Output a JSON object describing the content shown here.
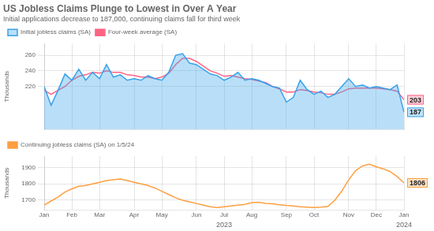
{
  "chart_data": [
    {
      "type": "line",
      "title": "US Jobless Claims Plunge to Lowest in Over A Year",
      "subtitle": "Initial applications decrease to 187,000, continuing claims fall for third week",
      "categories": [
        "Jan",
        null,
        null,
        null,
        "Feb",
        null,
        null,
        null,
        "Mar",
        null,
        null,
        null,
        null,
        "Apr",
        null,
        null,
        null,
        "May",
        null,
        null,
        null,
        null,
        "Jun",
        null,
        null,
        null,
        "Jul",
        null,
        null,
        null,
        "Aug",
        null,
        null,
        null,
        null,
        "Sep",
        null,
        null,
        null,
        "Oct",
        null,
        null,
        null,
        null,
        "Nov",
        null,
        null,
        null,
        "Dec",
        null,
        null,
        null,
        "Jan"
      ],
      "series": [
        {
          "name": "Initial jobless claims (SA)",
          "type": "area",
          "values": [
            220,
            196,
            215,
            236,
            228,
            242,
            228,
            238,
            230,
            248,
            232,
            235,
            228,
            230,
            228,
            234,
            230,
            228,
            238,
            260,
            262,
            250,
            248,
            242,
            236,
            234,
            228,
            232,
            238,
            228,
            230,
            228,
            224,
            220,
            218,
            200,
            206,
            228,
            216,
            210,
            214,
            206,
            210,
            220,
            230,
            220,
            222,
            218,
            220,
            218,
            216,
            222,
            187
          ]
        },
        {
          "name": "Four-week average (SA)",
          "type": "line",
          "values": [
            215,
            210,
            215,
            220,
            228,
            233,
            235,
            238,
            237,
            240,
            238,
            238,
            235,
            234,
            232,
            232,
            230,
            232,
            237,
            248,
            256,
            256,
            252,
            246,
            240,
            237,
            233,
            234,
            232,
            230,
            229,
            227,
            225,
            220,
            217,
            213,
            213,
            216,
            215,
            213,
            212,
            210,
            210,
            213,
            217,
            218,
            218,
            218,
            218,
            217,
            216,
            214,
            203
          ]
        }
      ],
      "ylim": [
        165,
        275
      ],
      "yticks": [
        220,
        240,
        260
      ],
      "y_label": "Thousands",
      "grid": true,
      "legend": "upper left",
      "tick_labels": "y",
      "annotations": [
        {
          "text": "203",
          "x": 52,
          "y": 203
        },
        {
          "text": "187",
          "x": 52,
          "y": 187
        }
      ]
    },
    {
      "type": "line",
      "categories": [
        "Jan",
        null,
        null,
        null,
        "Feb",
        null,
        null,
        null,
        "Mar",
        null,
        null,
        null,
        null,
        "Apr",
        null,
        null,
        null,
        "May",
        null,
        null,
        null,
        null,
        "Jun",
        null,
        null,
        null,
        "Jul",
        null,
        null,
        null,
        "Aug",
        null,
        null,
        null,
        null,
        "Sep",
        null,
        null,
        null,
        "Oct",
        null,
        null,
        null,
        null,
        "Nov",
        null,
        null,
        null,
        "Dec",
        null,
        null,
        null,
        "Jan"
      ],
      "series": [
        {
          "name": "Continuing jobless claims (SA) on 1/5/24",
          "type": "line",
          "values": [
            1670,
            1695,
            1720,
            1750,
            1770,
            1785,
            1790,
            1800,
            1810,
            1820,
            1825,
            1830,
            1820,
            1810,
            1800,
            1790,
            1775,
            1755,
            1735,
            1715,
            1700,
            1690,
            1680,
            1670,
            1660,
            1655,
            1660,
            1665,
            1670,
            1675,
            1685,
            1688,
            1680,
            1678,
            1672,
            1668,
            1665,
            1660,
            1658,
            1655,
            1658,
            1662,
            1700,
            1755,
            1825,
            1880,
            1910,
            1920,
            1905,
            1892,
            1875,
            1845,
            1806
          ]
        }
      ],
      "ylim": [
        1640,
        1970
      ],
      "yticks": [
        1700,
        1800,
        1900
      ],
      "y_label": "Thousands",
      "grid": true,
      "legend": "upper left",
      "annotations": [
        {
          "text": "1806",
          "x": 52,
          "y": 1806
        },
        {
          "text": "2023",
          "x": 26
        },
        {
          "text": "2024",
          "x": 52
        }
      ]
    }
  ]
}
